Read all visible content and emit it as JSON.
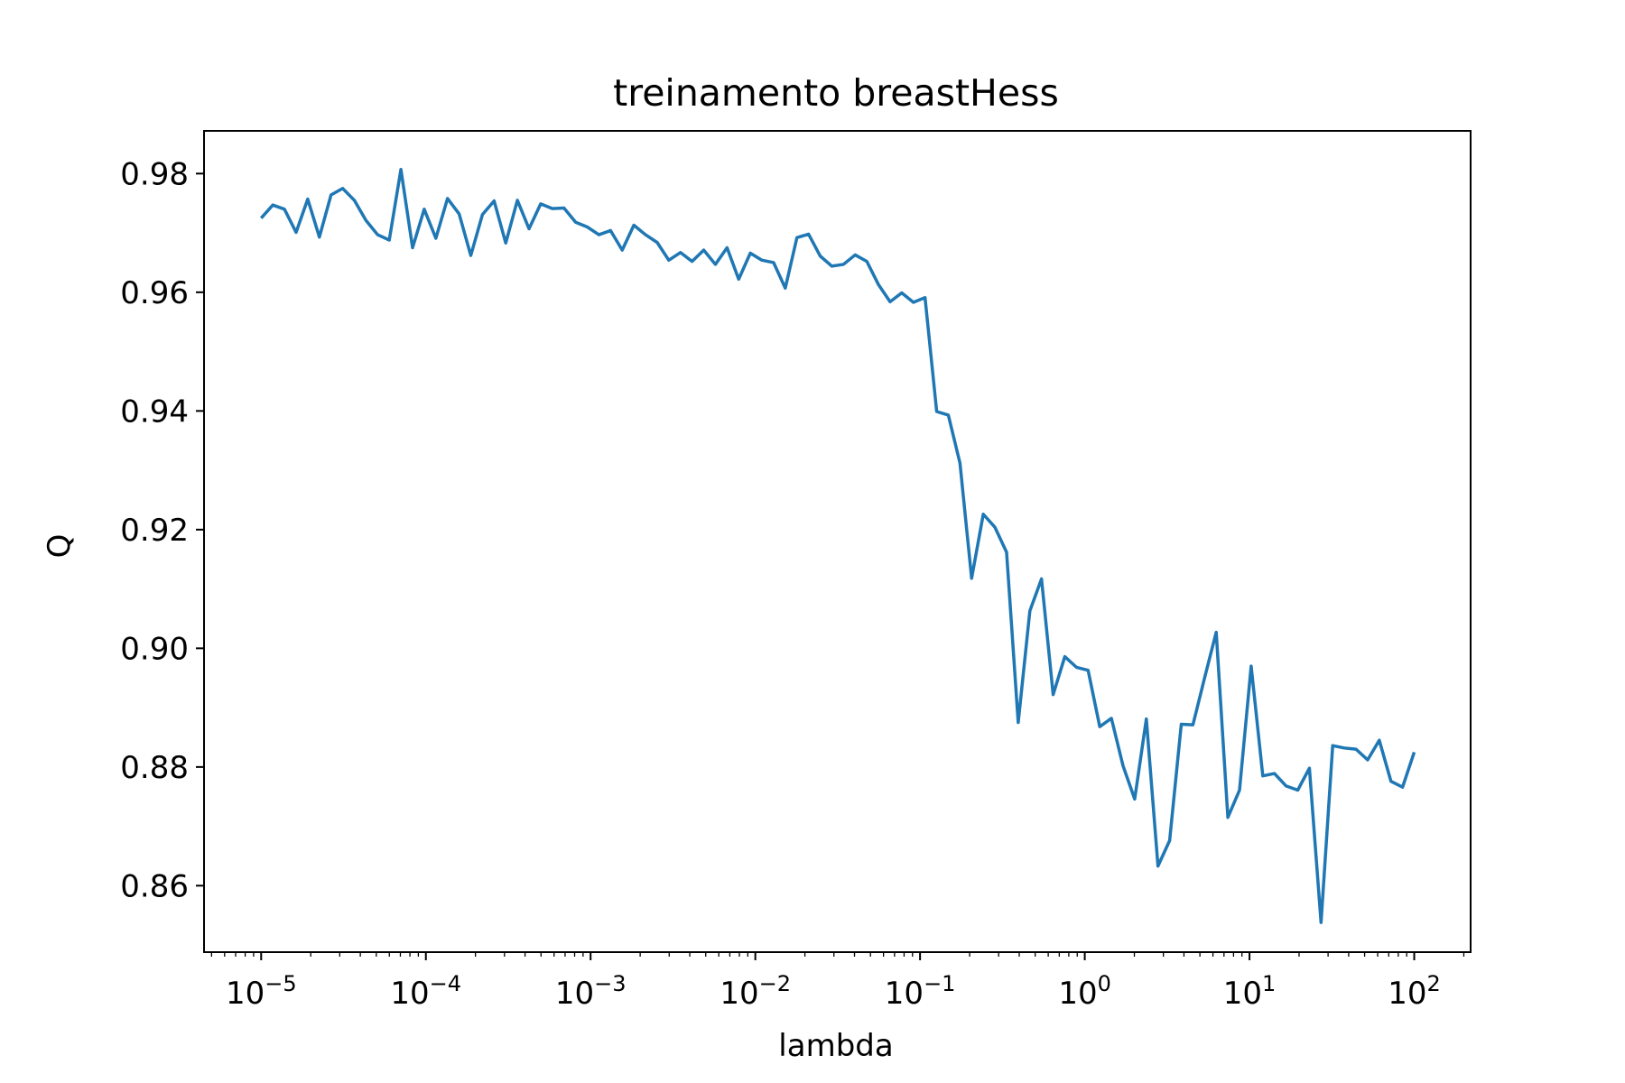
{
  "chart_data": {
    "type": "line",
    "title": "treinamento breastHess",
    "xlabel": "lambda",
    "ylabel": "Q",
    "xscale": "log",
    "xlim": [
      4.5e-06,
      220
    ],
    "ylim": [
      0.8488,
      0.9872
    ],
    "grid": false,
    "legend": "none",
    "line_color": "#1f77b4",
    "x_ticks": [
      {
        "value": 1e-05,
        "base": "10",
        "exp": "−5"
      },
      {
        "value": 0.0001,
        "base": "10",
        "exp": "−4"
      },
      {
        "value": 0.001,
        "base": "10",
        "exp": "−3"
      },
      {
        "value": 0.01,
        "base": "10",
        "exp": "−2"
      },
      {
        "value": 0.1,
        "base": "10",
        "exp": "−1"
      },
      {
        "value": 1,
        "base": "10",
        "exp": "0"
      },
      {
        "value": 10,
        "base": "10",
        "exp": "1"
      },
      {
        "value": 100,
        "base": "10",
        "exp": "2"
      }
    ],
    "y_ticks": [
      {
        "value": 0.86,
        "label": "0.86"
      },
      {
        "value": 0.88,
        "label": "0.88"
      },
      {
        "value": 0.9,
        "label": "0.90"
      },
      {
        "value": 0.92,
        "label": "0.92"
      },
      {
        "value": 0.94,
        "label": "0.94"
      },
      {
        "value": 0.96,
        "label": "0.96"
      },
      {
        "value": 0.98,
        "label": "0.98"
      }
    ],
    "series": [
      {
        "x_log10_start": -5,
        "x_log10_end": 2,
        "y": [
          0.9725,
          0.9747,
          0.974,
          0.9701,
          0.9757,
          0.9693,
          0.9764,
          0.9775,
          0.9755,
          0.9721,
          0.9697,
          0.9688,
          0.9807,
          0.9675,
          0.974,
          0.9691,
          0.9758,
          0.9732,
          0.9662,
          0.9731,
          0.9754,
          0.9683,
          0.9755,
          0.9707,
          0.9749,
          0.9741,
          0.9742,
          0.9718,
          0.971,
          0.9697,
          0.9704,
          0.9671,
          0.9713,
          0.9697,
          0.9684,
          0.9654,
          0.9667,
          0.9652,
          0.9671,
          0.9647,
          0.9675,
          0.9622,
          0.9666,
          0.9654,
          0.965,
          0.9607,
          0.9692,
          0.9698,
          0.9661,
          0.9644,
          0.9647,
          0.9663,
          0.9652,
          0.9613,
          0.9584,
          0.9599,
          0.9583,
          0.9591,
          0.9399,
          0.9393,
          0.9312,
          0.9118,
          0.9226,
          0.9204,
          0.9162,
          0.8875,
          0.9063,
          0.9117,
          0.8922,
          0.8986,
          0.8968,
          0.8963,
          0.8868,
          0.8882,
          0.8802,
          0.8746,
          0.8881,
          0.8633,
          0.8676,
          0.8872,
          0.8871,
          0.895,
          0.9027,
          0.8715,
          0.8761,
          0.897,
          0.8785,
          0.8789,
          0.8768,
          0.8761,
          0.8798,
          0.8538,
          0.8836,
          0.8832,
          0.883,
          0.8812,
          0.8845,
          0.8776,
          0.8766,
          0.8825
        ]
      }
    ]
  }
}
